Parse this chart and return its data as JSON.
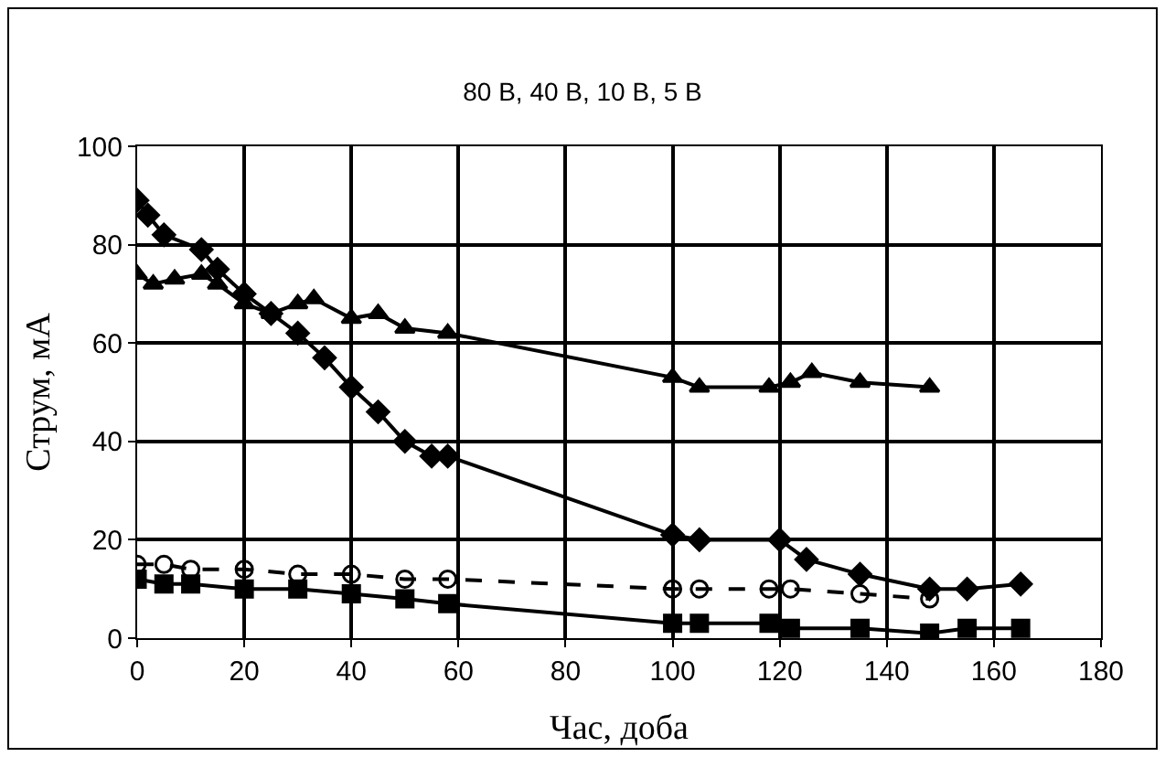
{
  "chart_data": {
    "type": "line",
    "title": "80 В, 40 В, 10 В, 5 В",
    "xlabel": "Час, доба",
    "ylabel": "Струм, мА",
    "xlim": [
      0,
      180
    ],
    "xticks": [
      0,
      20,
      40,
      60,
      80,
      100,
      120,
      140,
      160,
      180
    ],
    "ylim": [
      0,
      100
    ],
    "yticks": [
      0,
      20,
      40,
      60,
      80,
      100
    ],
    "grid": true,
    "series": [
      {
        "color": "#000000",
        "marker": "diamond",
        "x": [
          0,
          2,
          5,
          12,
          15,
          20,
          25,
          30,
          35,
          40,
          45,
          50,
          55,
          58,
          100,
          105,
          120,
          125,
          135,
          148,
          155,
          165
        ],
        "values": [
          89,
          86,
          82,
          79,
          75,
          70,
          66,
          62,
          57,
          51,
          46,
          40,
          37,
          37,
          21,
          20,
          20,
          16,
          13,
          10,
          10,
          11
        ]
      },
      {
        "color": "#000000",
        "marker": "triangle",
        "x": [
          0,
          3,
          7,
          12,
          15,
          20,
          25,
          30,
          33,
          40,
          45,
          50,
          58,
          100,
          105,
          118,
          122,
          126,
          135,
          148
        ],
        "values": [
          74,
          72,
          73,
          74,
          72,
          68,
          66,
          68,
          69,
          65,
          66,
          63,
          62,
          53,
          51,
          51,
          52,
          54,
          52,
          51
        ]
      },
      {
        "color": "#000000",
        "marker": "square",
        "x": [
          0,
          5,
          10,
          20,
          30,
          40,
          50,
          58,
          100,
          105,
          118,
          122,
          135,
          148,
          155,
          165
        ],
        "values": [
          12,
          11,
          11,
          10,
          10,
          9,
          8,
          7,
          3,
          3,
          3,
          2,
          2,
          1,
          2,
          2
        ]
      },
      {
        "color": "#000000",
        "marker": "circle-open",
        "line_style": "dashed",
        "x": [
          0,
          5,
          10,
          20,
          30,
          40,
          50,
          58,
          100,
          105,
          118,
          122,
          135,
          148
        ],
        "values": [
          15,
          15,
          14,
          14,
          13,
          13,
          12,
          12,
          10,
          10,
          10,
          10,
          9,
          8
        ]
      }
    ]
  }
}
